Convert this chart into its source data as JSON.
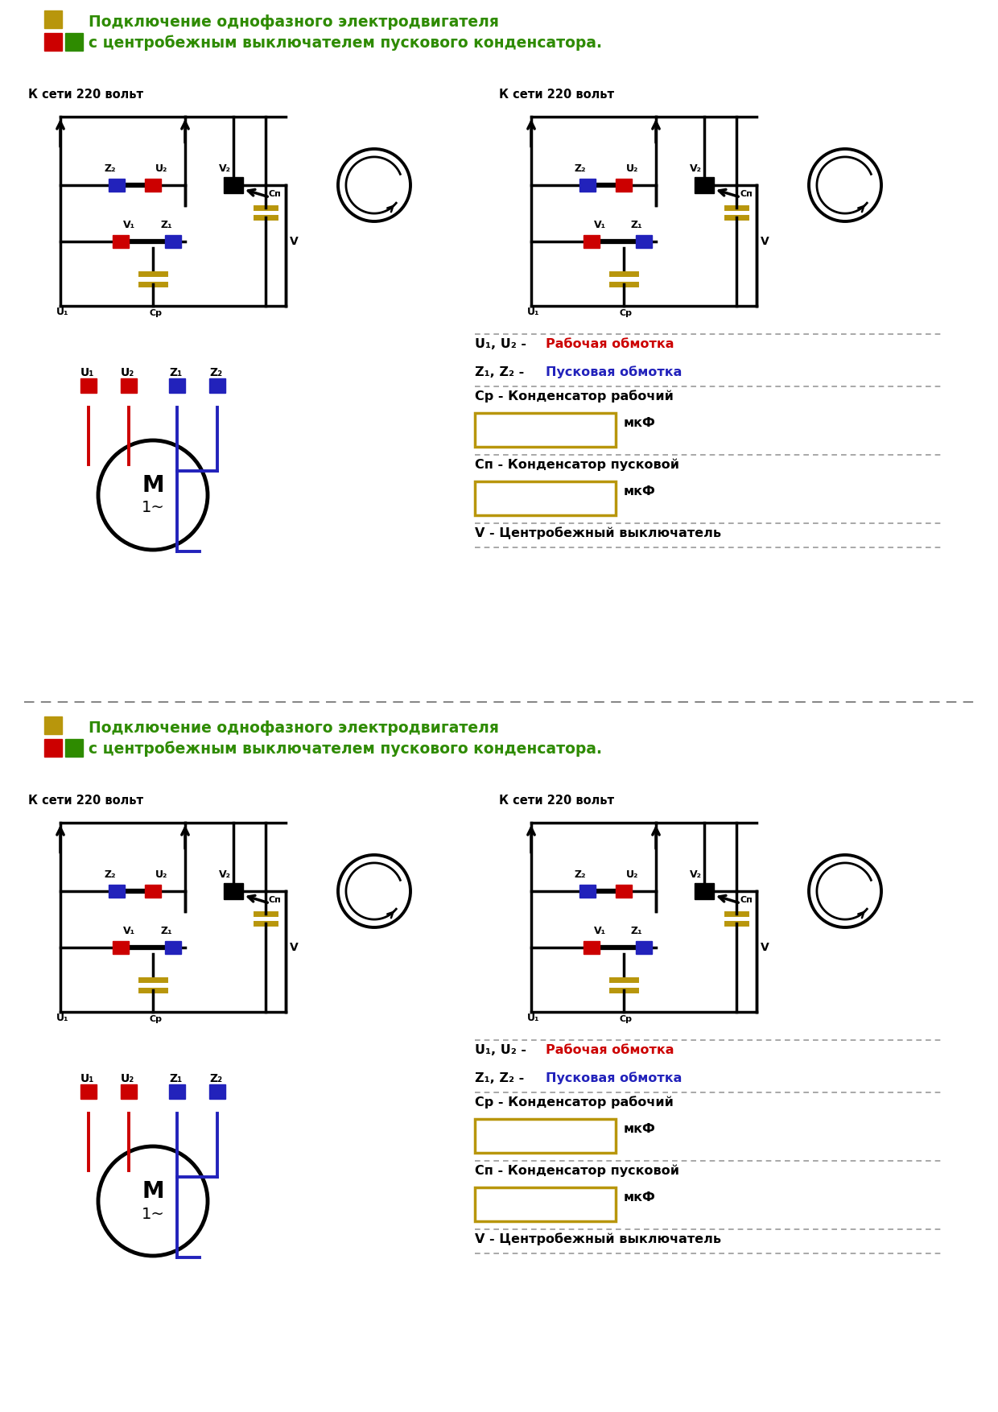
{
  "title_line1": "Подключение однофазного электродвигателя",
  "title_line2": "с центробежным выключателем пускового конденсатора.",
  "title_color": "#2e8b00",
  "label_k_seti": "К сети 220 вольт",
  "bg_color": "#ffffff",
  "red": "#cc0000",
  "blue": "#2222bb",
  "gold": "#b8960c",
  "black": "#000000",
  "green": "#2e8b00"
}
